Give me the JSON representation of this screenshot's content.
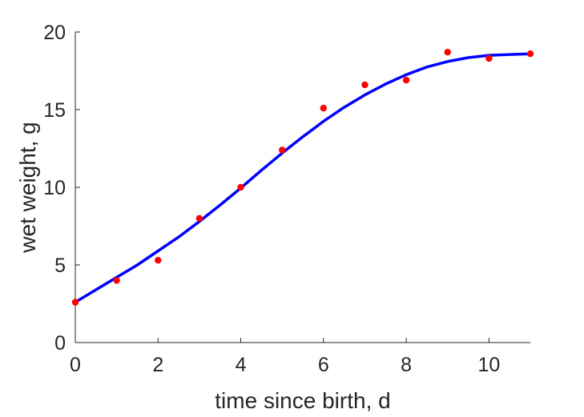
{
  "chart_data": {
    "type": "scatter",
    "title": "",
    "xlabel": "time since birth, d",
    "ylabel": "wet weight, g",
    "xlim": [
      0,
      11
    ],
    "ylim": [
      0,
      20
    ],
    "xticks": [
      0,
      2,
      4,
      6,
      8,
      10
    ],
    "yticks": [
      0,
      5,
      10,
      15,
      20
    ],
    "grid": false,
    "box": false,
    "series": [
      {
        "kind": "points",
        "color": "#ff0000",
        "x": [
          0,
          1,
          2,
          3,
          4,
          5,
          6,
          7,
          8,
          9,
          10,
          11
        ],
        "y": [
          2.6,
          4.0,
          5.3,
          8.0,
          10.0,
          12.4,
          15.1,
          16.6,
          16.9,
          18.7,
          18.3,
          18.6
        ]
      },
      {
        "kind": "line",
        "color": "#0000ff",
        "x": [
          0,
          0.5,
          1,
          1.5,
          2,
          2.5,
          3,
          3.5,
          4,
          4.5,
          5,
          5.5,
          6,
          6.5,
          7,
          7.5,
          8,
          8.5,
          9,
          9.5,
          10,
          10.5,
          11
        ],
        "y": [
          2.6,
          3.4,
          4.2,
          5.0,
          5.9,
          6.8,
          7.8,
          8.85,
          9.95,
          11.1,
          12.2,
          13.25,
          14.25,
          15.15,
          15.95,
          16.65,
          17.25,
          17.75,
          18.1,
          18.35,
          18.5,
          18.55,
          18.6
        ]
      }
    ]
  }
}
